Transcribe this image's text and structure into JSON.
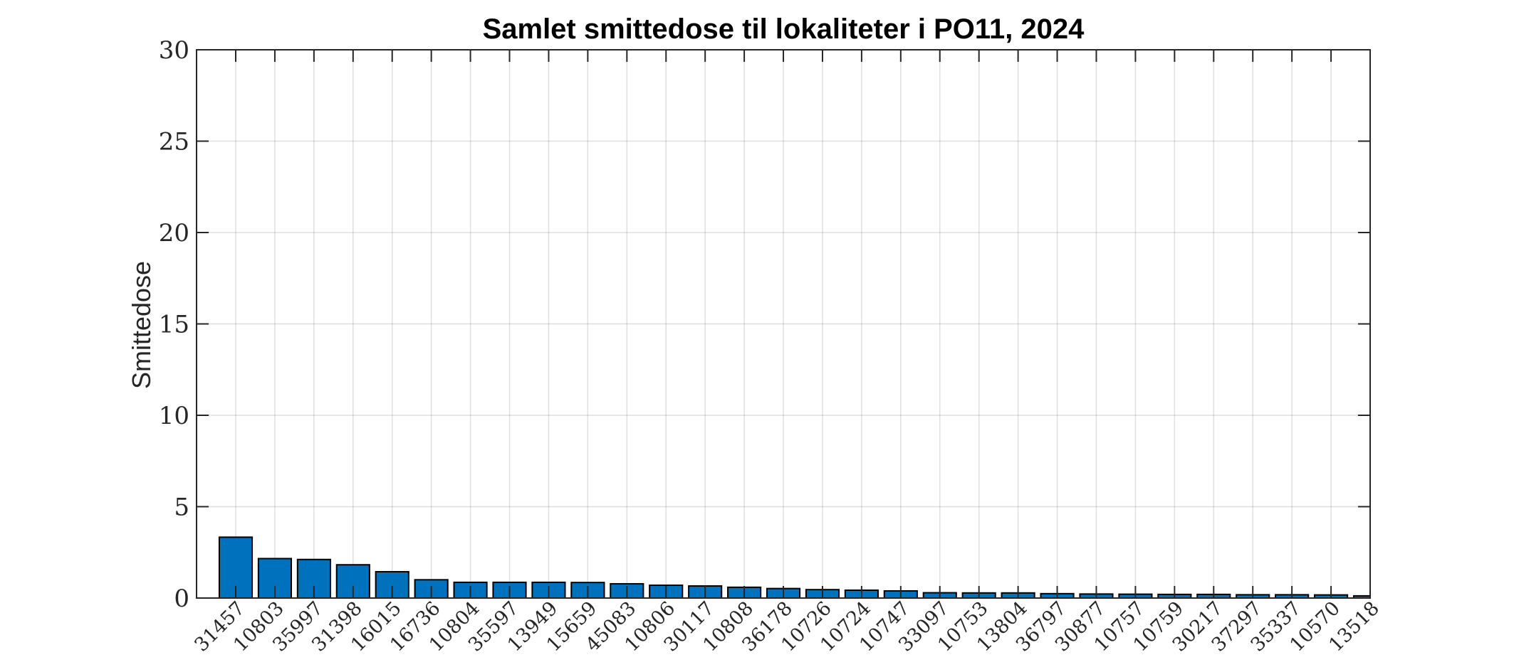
{
  "figure": {
    "background": "#ffffff",
    "bar_color": "#0072BD",
    "bar_edge_color": "#000000",
    "axis_color": "#262626"
  },
  "chart_data": {
    "type": "bar",
    "title": "Samlet smittedose til lokaliteter i PO11, 2024",
    "xlabel": "",
    "ylabel": "Smittedose",
    "ylim": [
      0,
      30
    ],
    "yticks": [
      0,
      5,
      10,
      15,
      20,
      25,
      30
    ],
    "ytick_labels": [
      "0",
      "5",
      "10",
      "15",
      "20",
      "25",
      "30"
    ],
    "grid": true,
    "legend": null,
    "categories": [
      "31457",
      "10803",
      "35997",
      "31398",
      "16015",
      "16736",
      "10804",
      "35597",
      "13949",
      "15659",
      "45083",
      "10806",
      "30117",
      "10808",
      "36178",
      "10726",
      "10724",
      "10747",
      "33097",
      "10753",
      "13804",
      "36797",
      "30877",
      "10757",
      "10759",
      "30217",
      "37297",
      "35337",
      "10570",
      "13518"
    ],
    "values": [
      3.33,
      2.16,
      2.11,
      1.82,
      1.44,
      1.0,
      0.86,
      0.86,
      0.86,
      0.85,
      0.78,
      0.7,
      0.66,
      0.59,
      0.52,
      0.46,
      0.43,
      0.39,
      0.29,
      0.28,
      0.28,
      0.24,
      0.22,
      0.21,
      0.2,
      0.2,
      0.18,
      0.18,
      0.17,
      0.12
    ],
    "xtick_rotation": 45,
    "last_bar_clipped_at_axis_edge": true
  }
}
